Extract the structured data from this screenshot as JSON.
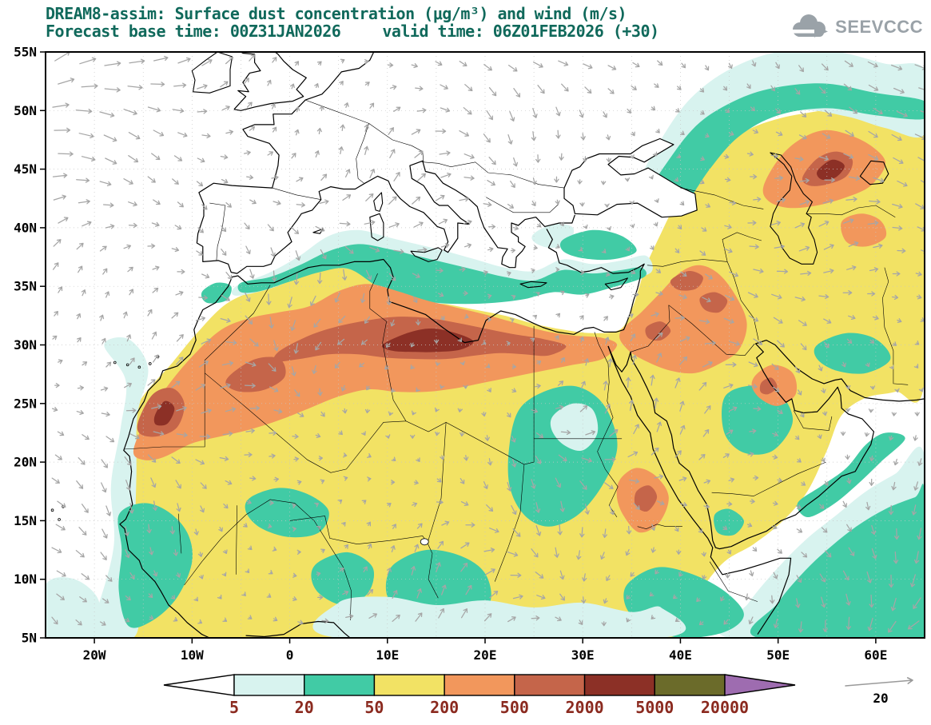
{
  "header": {
    "title_line1": "DREAM8-assim: Surface dust concentration (μg/m³) and wind (m/s)",
    "line2_left": "Forecast base time: 00Z31JAN2026",
    "line2_right": "valid time: 06Z01FEB2026 (+30)",
    "title_color": "#10695b"
  },
  "logo": {
    "text": "SEEVCCC",
    "color": "#9aa2a8"
  },
  "axes": {
    "lat_ticks": [
      {
        "label": "55N",
        "value": 55
      },
      {
        "label": "50N",
        "value": 50
      },
      {
        "label": "45N",
        "value": 45
      },
      {
        "label": "40N",
        "value": 40
      },
      {
        "label": "35N",
        "value": 35
      },
      {
        "label": "30N",
        "value": 30
      },
      {
        "label": "25N",
        "value": 25
      },
      {
        "label": "20N",
        "value": 20
      },
      {
        "label": "15N",
        "value": 15
      },
      {
        "label": "10N",
        "value": 10
      },
      {
        "label": "5N",
        "value": 5
      }
    ],
    "lon_ticks": [
      {
        "label": "20W",
        "value": -20
      },
      {
        "label": "10W",
        "value": -10
      },
      {
        "label": "0",
        "value": 0
      },
      {
        "label": "10E",
        "value": 10
      },
      {
        "label": "20E",
        "value": 20
      },
      {
        "label": "30E",
        "value": 30
      },
      {
        "label": "40E",
        "value": 40
      },
      {
        "label": "50E",
        "value": 50
      },
      {
        "label": "60E",
        "value": 60
      }
    ]
  },
  "colorbar": {
    "labels": [
      "5",
      "20",
      "50",
      "200",
      "500",
      "2000",
      "5000",
      "20000"
    ],
    "colors": [
      "#ffffff",
      "#d8f3ef",
      "#41cba5",
      "#f2e264",
      "#f2975c",
      "#c5654a",
      "#8c3026",
      "#6b6b2a",
      "#9e6cb0"
    ],
    "label_color": "#8b2a1f"
  },
  "wind_ref": {
    "label": "20"
  },
  "chart_data": {
    "type": "heatmap",
    "title": "DREAM8-assim: Surface dust concentration (μg/m³) and wind (m/s)",
    "model": "DREAM8-assim",
    "variable": "Surface dust concentration",
    "units": "μg/m³",
    "wind_units": "m/s",
    "forecast_base_time": "00Z31JAN2026",
    "valid_time": "06Z01FEB2026",
    "lead": "+30",
    "wind_reference_ms": 20,
    "lon_range_deg": [
      -25,
      65
    ],
    "lat_range_deg": [
      5,
      55
    ],
    "contour_levels_ugm3": [
      5,
      20,
      50,
      200,
      500,
      2000,
      5000,
      20000
    ],
    "palette": [
      "#ffffff",
      "#d8f3ef",
      "#41cba5",
      "#f2e264",
      "#f2975c",
      "#c5654a",
      "#8c3026",
      "#6b6b2a",
      "#9e6cb0"
    ],
    "high_dust_cores": [
      "Algeria-Libya belt ~28-33N, 0-25E with >2000 μg/m³ core near 10-19E",
      "Mauritania / Western Sahara ~22-26N (>500 μg/m³)",
      "Caspian / Central Asia ~42-48N, 49-60E (500-2000 μg/m³ core)",
      "N Iraq / SE Turkey and N Saudi Arabia (200-500 μg/m³)",
      "Red Sea coast near Sudan/Eritrea (200-500 μg/m³)"
    ],
    "moderate_dust_regions": [
      "Most of Sahara, Sahel and Arabian Peninsula (50-200 μg/m³, yellow)",
      "Orange 200-500 μg/m³ band along the North African Mediterranean margin"
    ],
    "low_dust_regions": [
      "Europe and NE Atlantic (<5 μg/m³, white)",
      "Gulf of Guinea coast, Sudan-Chad belt, Horn of Africa (5-50 μg/m³)",
      "Arabian Sea SE corner and coastal Atlantic fringe (5-50 μg/m³)"
    ]
  }
}
